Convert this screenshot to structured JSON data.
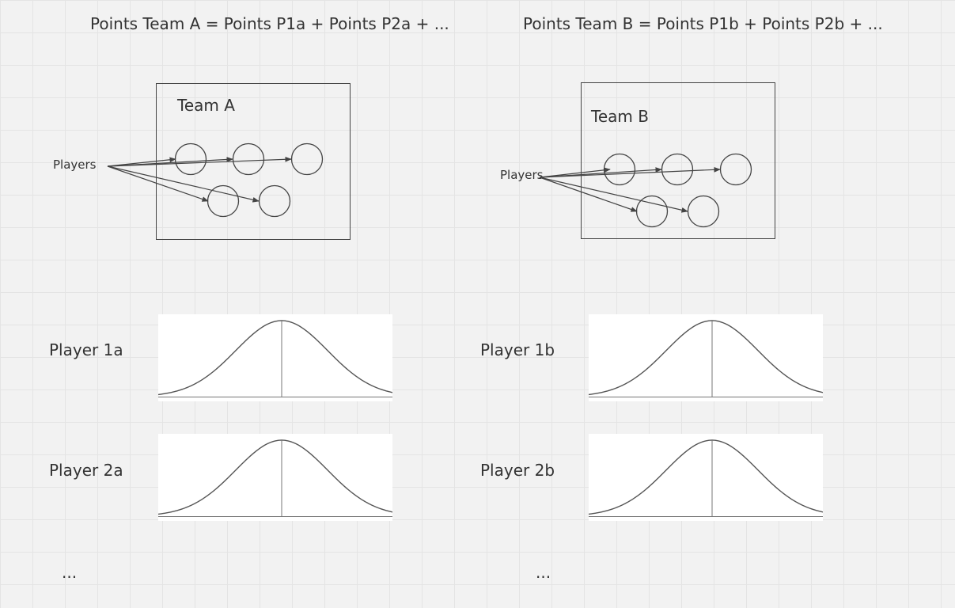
{
  "formulas": {
    "team_a": "Points Team A  = Points P1a + Points P2a + ...",
    "team_b": "Points Team B  = Points P1b + Points P2b + ..."
  },
  "teams": {
    "a": {
      "title": "Team A",
      "players_label": "Players"
    },
    "b": {
      "title": "Team B",
      "players_label": "Players"
    }
  },
  "players": {
    "p1a": "Player 1a",
    "p2a": "Player 2a",
    "p1b": "Player 1b",
    "p2b": "Player 2b"
  },
  "ellipsis": {
    "left": "...",
    "right": "..."
  },
  "colors": {
    "canvas_background": "#f2f2f2",
    "grid_line": "#e4e4e4",
    "stroke": "#444444",
    "curve": "#555555",
    "text": "#333333",
    "card": "#ffffff"
  }
}
